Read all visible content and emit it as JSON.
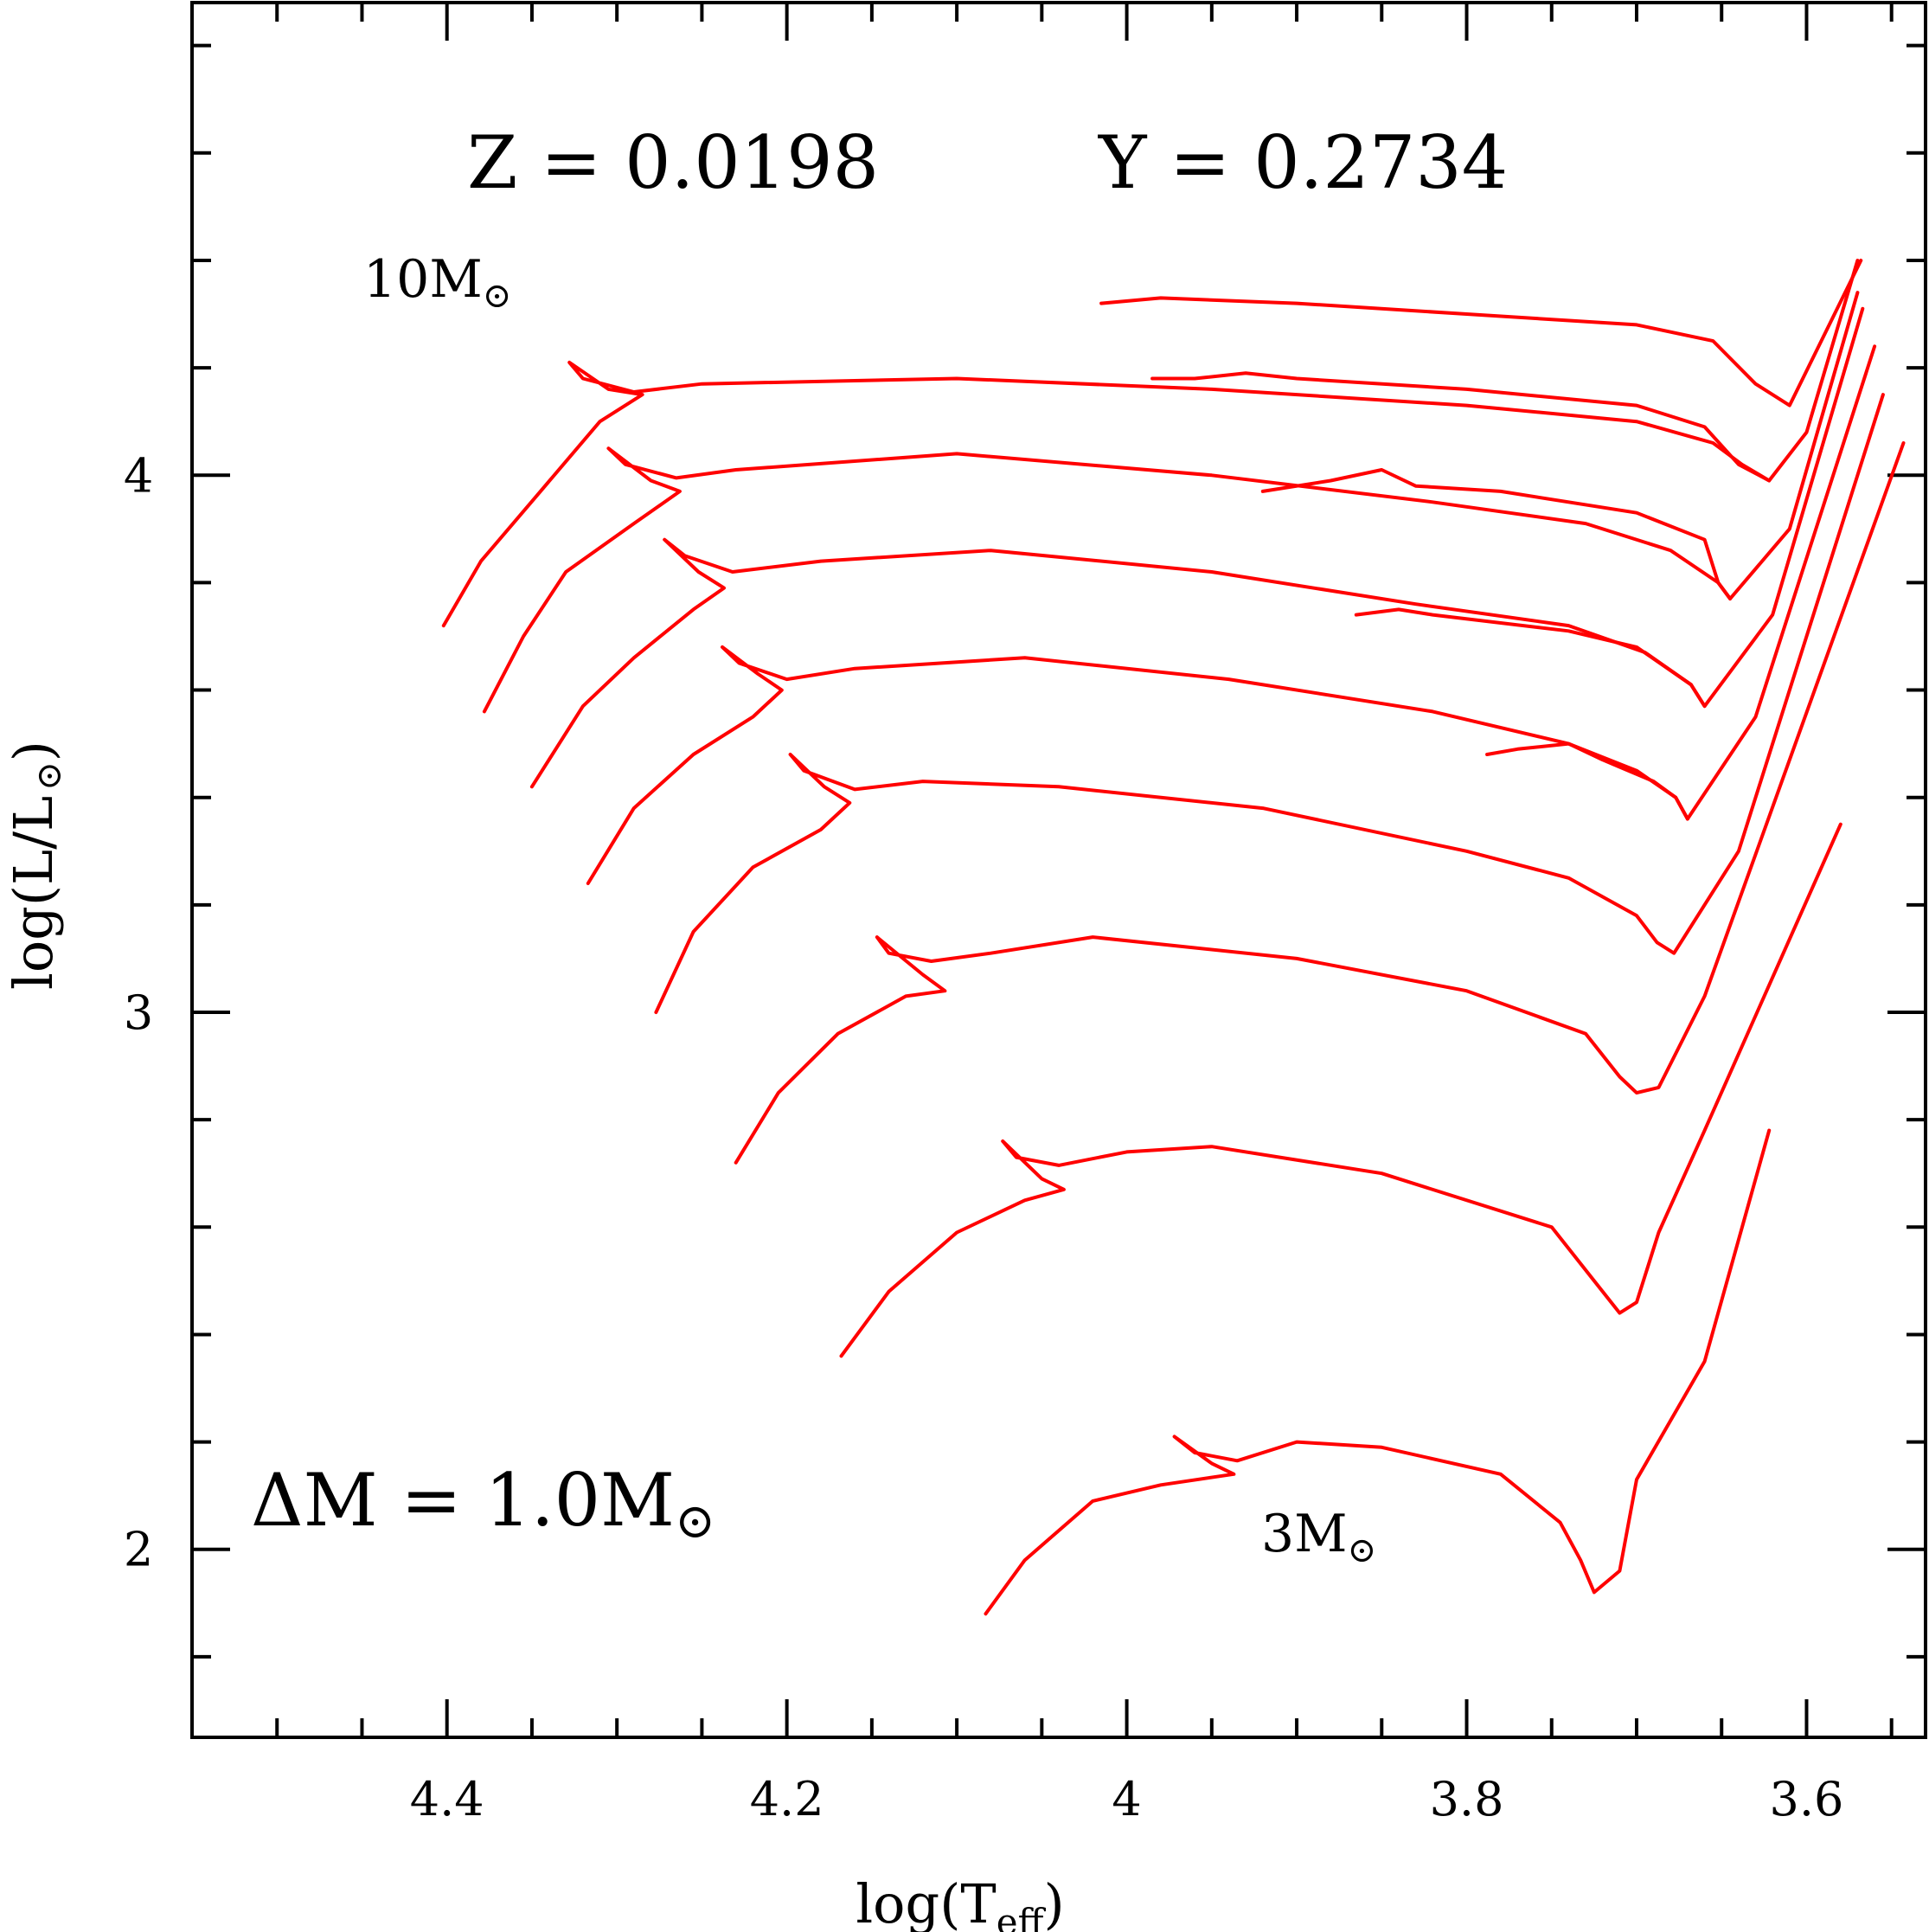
{
  "chart_data": {
    "type": "line",
    "xlabel": "log(T",
    "xlabel_sub": "eff",
    "xlabel_close": ")",
    "ylabel": "log(L/L",
    "ylabel_close": ")",
    "xlim": [
      4.55,
      3.53
    ],
    "ylim": [
      1.65,
      4.88
    ],
    "x_reversed": true,
    "x_ticks": [
      4.4,
      4.2,
      4.0,
      3.8,
      3.6
    ],
    "x_tick_labels": [
      "4.4",
      "4.2",
      "4",
      "3.8",
      "3.6"
    ],
    "x_minor_step": 0.05,
    "y_ticks": [
      2,
      3,
      4
    ],
    "y_tick_labels": [
      "2",
      "3",
      "4"
    ],
    "y_minor_step": 0.2,
    "annotations": {
      "composition_z": "Z  =  0.0198",
      "composition_y": "Y  =  0.2734",
      "mass_top": "10M",
      "mass_bottom": "3M",
      "delta_m": "ΔM  =  1.0M"
    },
    "series_color": "#ff0000",
    "series": [
      {
        "values": [
          [
            4.402,
            3.72
          ],
          [
            4.38,
            3.84
          ],
          [
            4.345,
            3.97
          ],
          [
            4.31,
            4.1
          ],
          [
            4.285,
            4.15
          ],
          [
            4.305,
            4.16
          ],
          [
            4.328,
            4.21
          ],
          [
            4.32,
            4.18
          ],
          [
            4.29,
            4.155
          ],
          [
            4.25,
            4.17
          ],
          [
            4.1,
            4.18
          ],
          [
            3.95,
            4.16
          ],
          [
            3.8,
            4.13
          ],
          [
            3.7,
            4.1
          ],
          [
            3.655,
            4.06
          ],
          [
            3.638,
            4.02
          ],
          [
            3.622,
            3.99
          ],
          [
            3.6,
            4.08
          ],
          [
            3.57,
            4.4
          ]
        ]
      },
      {
        "values": [
          [
            4.378,
            3.56
          ],
          [
            4.355,
            3.7
          ],
          [
            4.33,
            3.82
          ],
          [
            4.29,
            3.91
          ],
          [
            4.263,
            3.97
          ],
          [
            4.28,
            3.99
          ],
          [
            4.305,
            4.05
          ],
          [
            4.295,
            4.02
          ],
          [
            4.265,
            3.995
          ],
          [
            4.23,
            4.01
          ],
          [
            4.1,
            4.04
          ],
          [
            3.95,
            4.0
          ],
          [
            3.82,
            3.95
          ],
          [
            3.73,
            3.91
          ],
          [
            3.68,
            3.86
          ],
          [
            3.652,
            3.8
          ],
          [
            3.645,
            3.77
          ],
          [
            3.61,
            3.9
          ],
          [
            3.57,
            4.34
          ]
        ]
      },
      {
        "values": [
          [
            4.35,
            3.42
          ],
          [
            4.32,
            3.57
          ],
          [
            4.29,
            3.66
          ],
          [
            4.255,
            3.75
          ],
          [
            4.237,
            3.79
          ],
          [
            4.252,
            3.82
          ],
          [
            4.272,
            3.88
          ],
          [
            4.26,
            3.85
          ],
          [
            4.232,
            3.82
          ],
          [
            4.18,
            3.84
          ],
          [
            4.08,
            3.86
          ],
          [
            3.95,
            3.82
          ],
          [
            3.83,
            3.76
          ],
          [
            3.74,
            3.72
          ],
          [
            3.695,
            3.67
          ],
          [
            3.668,
            3.61
          ],
          [
            3.66,
            3.57
          ],
          [
            3.62,
            3.74
          ],
          [
            3.567,
            4.31
          ]
        ]
      },
      {
        "values": [
          [
            4.317,
            3.24
          ],
          [
            4.29,
            3.38
          ],
          [
            4.255,
            3.48
          ],
          [
            4.22,
            3.55
          ],
          [
            4.203,
            3.6
          ],
          [
            4.217,
            3.63
          ],
          [
            4.238,
            3.68
          ],
          [
            4.228,
            3.65
          ],
          [
            4.2,
            3.62
          ],
          [
            4.16,
            3.64
          ],
          [
            4.06,
            3.66
          ],
          [
            3.94,
            3.62
          ],
          [
            3.82,
            3.56
          ],
          [
            3.74,
            3.5
          ],
          [
            3.7,
            3.45
          ],
          [
            3.677,
            3.4
          ],
          [
            3.67,
            3.36
          ],
          [
            3.63,
            3.55
          ],
          [
            3.56,
            4.24
          ]
        ]
      },
      {
        "values": [
          [
            4.277,
            3.0
          ],
          [
            4.255,
            3.15
          ],
          [
            4.22,
            3.27
          ],
          [
            4.18,
            3.34
          ],
          [
            4.163,
            3.39
          ],
          [
            4.178,
            3.42
          ],
          [
            4.198,
            3.48
          ],
          [
            4.19,
            3.45
          ],
          [
            4.16,
            3.415
          ],
          [
            4.12,
            3.43
          ],
          [
            4.04,
            3.42
          ],
          [
            3.92,
            3.38
          ],
          [
            3.8,
            3.3
          ],
          [
            3.74,
            3.25
          ],
          [
            3.7,
            3.18
          ],
          [
            3.688,
            3.13
          ],
          [
            3.678,
            3.11
          ],
          [
            3.64,
            3.3
          ],
          [
            3.555,
            4.15
          ]
        ]
      },
      {
        "values": [
          [
            4.23,
            2.72
          ],
          [
            4.205,
            2.85
          ],
          [
            4.17,
            2.96
          ],
          [
            4.13,
            3.03
          ],
          [
            4.107,
            3.04
          ],
          [
            4.12,
            3.07
          ],
          [
            4.147,
            3.14
          ],
          [
            4.14,
            3.11
          ],
          [
            4.115,
            3.095
          ],
          [
            4.08,
            3.11
          ],
          [
            4.02,
            3.14
          ],
          [
            3.9,
            3.1
          ],
          [
            3.8,
            3.04
          ],
          [
            3.73,
            2.96
          ],
          [
            3.71,
            2.88
          ],
          [
            3.7,
            2.85
          ],
          [
            3.687,
            2.86
          ],
          [
            3.66,
            3.03
          ],
          [
            3.543,
            4.06
          ]
        ]
      },
      {
        "values": [
          [
            4.168,
            2.36
          ],
          [
            4.14,
            2.48
          ],
          [
            4.1,
            2.59
          ],
          [
            4.06,
            2.65
          ],
          [
            4.037,
            2.67
          ],
          [
            4.05,
            2.69
          ],
          [
            4.073,
            2.76
          ],
          [
            4.065,
            2.73
          ],
          [
            4.04,
            2.715
          ],
          [
            4.0,
            2.74
          ],
          [
            3.95,
            2.75
          ],
          [
            3.85,
            2.7
          ],
          [
            3.75,
            2.6
          ],
          [
            3.725,
            2.5
          ],
          [
            3.71,
            2.44
          ],
          [
            3.7,
            2.46
          ],
          [
            3.687,
            2.59
          ],
          [
            3.66,
            2.78
          ],
          [
            3.58,
            3.35
          ]
        ]
      },
      {
        "values": [
          [
            4.083,
            1.88
          ],
          [
            4.06,
            1.98
          ],
          [
            4.02,
            2.09
          ],
          [
            3.98,
            2.12
          ],
          [
            3.937,
            2.14
          ],
          [
            3.95,
            2.16
          ],
          [
            3.972,
            2.21
          ],
          [
            3.96,
            2.18
          ],
          [
            3.935,
            2.165
          ],
          [
            3.9,
            2.2
          ],
          [
            3.85,
            2.19
          ],
          [
            3.78,
            2.14
          ],
          [
            3.745,
            2.05
          ],
          [
            3.733,
            1.98
          ],
          [
            3.725,
            1.92
          ],
          [
            3.71,
            1.96
          ],
          [
            3.7,
            2.13
          ],
          [
            3.66,
            2.35
          ],
          [
            3.622,
            2.78
          ]
        ]
      },
      {
        "values": [
          [
            4.015,
            4.32
          ],
          [
            3.98,
            4.33
          ],
          [
            3.9,
            4.32
          ],
          [
            3.8,
            4.3
          ],
          [
            3.7,
            4.28
          ],
          [
            3.655,
            4.25
          ],
          [
            3.63,
            4.17
          ],
          [
            3.61,
            4.13
          ],
          [
            3.568,
            4.4
          ]
        ]
      },
      {
        "values": [
          [
            3.985,
            4.18
          ],
          [
            3.96,
            4.18
          ],
          [
            3.93,
            4.19
          ],
          [
            3.9,
            4.18
          ],
          [
            3.8,
            4.16
          ],
          [
            3.7,
            4.13
          ],
          [
            3.66,
            4.09
          ],
          [
            3.64,
            4.02
          ],
          [
            3.622,
            3.99
          ]
        ]
      },
      {
        "values": [
          [
            3.92,
            3.97
          ],
          [
            3.88,
            3.99
          ],
          [
            3.85,
            4.01
          ],
          [
            3.83,
            3.98
          ],
          [
            3.78,
            3.97
          ],
          [
            3.7,
            3.93
          ],
          [
            3.66,
            3.88
          ],
          [
            3.652,
            3.8
          ],
          [
            3.645,
            3.77
          ]
        ]
      },
      {
        "values": [
          [
            3.865,
            3.74
          ],
          [
            3.84,
            3.75
          ],
          [
            3.82,
            3.74
          ],
          [
            3.74,
            3.71
          ],
          [
            3.7,
            3.68
          ],
          [
            3.668,
            3.61
          ],
          [
            3.66,
            3.57
          ]
        ]
      },
      {
        "values": [
          [
            3.788,
            3.48
          ],
          [
            3.77,
            3.49
          ],
          [
            3.74,
            3.5
          ],
          [
            3.72,
            3.47
          ],
          [
            3.69,
            3.43
          ],
          [
            3.677,
            3.4
          ],
          [
            3.67,
            3.36
          ]
        ]
      }
    ]
  }
}
